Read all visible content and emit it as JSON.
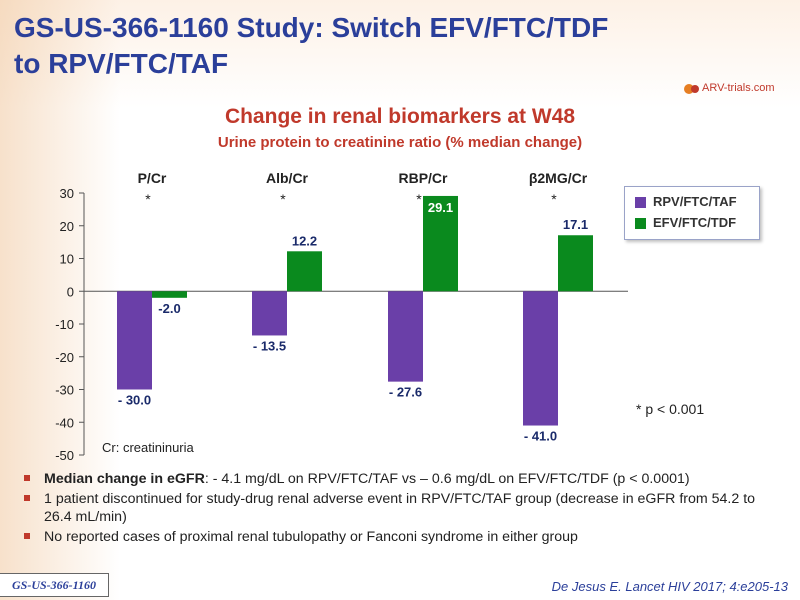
{
  "slide": {
    "title_line1": "GS-US-366-1160 Study: Switch EFV/FTC/TDF",
    "title_line2": "to RPV/FTC/TAF",
    "logo_text": "ARV-trials.com",
    "study_badge": "GS-US-366-1160",
    "citation": "De Jesus E. Lancet HIV 2017; 4:e205-13",
    "note_cr": "Cr: creatininuria",
    "footnote_p": "* p < 0.001",
    "bullets": [
      {
        "bold": "Median change in eGFR",
        "text": ": - 4.1 mg/dL on RPV/FTC/TAF vs – 0.6 mg/dL on EFV/FTC/TDF (p < 0.0001)"
      },
      {
        "bold": "",
        "text": "1 patient discontinued  for study-drug renal adverse event in RPV/FTC/TAF group (decrease in eGFR from 54.2 to 26.4 mL/min)"
      },
      {
        "bold": "",
        "text": "No reported cases of proximal renal tubulopathy or Fanconi syndrome in either group"
      }
    ]
  },
  "colors": {
    "title": "#2b3f9a",
    "accent_red": "#c0392b",
    "rpv": "#6a3fa8",
    "efv": "#0a8a1e"
  },
  "chart_data": {
    "type": "bar",
    "title": "Change in renal biomarkers at W48",
    "subtitle": "Urine protein to creatinine ratio (% median change)",
    "categories": [
      "P/Cr",
      "Alb/Cr",
      "RBP/Cr",
      "β2MG/Cr"
    ],
    "significance": [
      "*",
      "*",
      "*",
      "*"
    ],
    "series": [
      {
        "name": "RPV/FTC/TAF",
        "values": [
          -30.0,
          -13.5,
          -27.6,
          -41.0
        ],
        "labels": [
          "- 30.0",
          "- 13.5",
          "-  27.6",
          "- 41.0"
        ],
        "color": "#6a3fa8"
      },
      {
        "name": "EFV/FTC/TDF",
        "values": [
          -2.0,
          12.2,
          29.1,
          17.1
        ],
        "labels": [
          "-2.0",
          "12.2",
          "29.1",
          "17.1"
        ],
        "color": "#0a8a1e"
      }
    ],
    "ylim": [
      -50,
      30
    ],
    "yticks": [
      30,
      20,
      10,
      0,
      -10,
      -20,
      -30,
      -40,
      -50
    ],
    "legend_position": "top-right",
    "grid": false
  }
}
